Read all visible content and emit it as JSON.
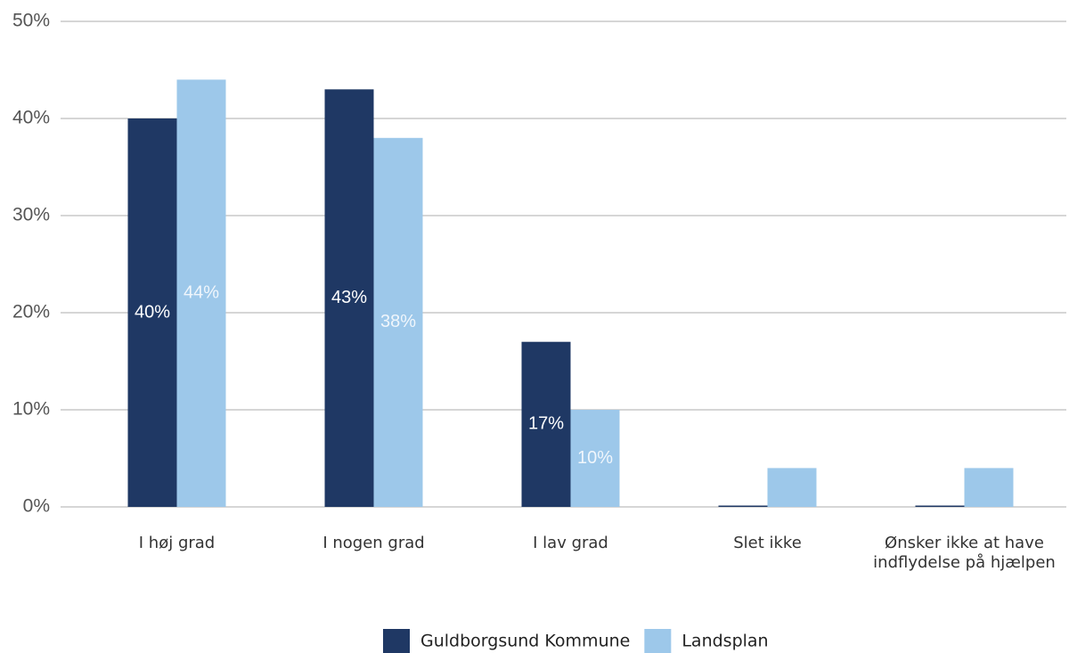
{
  "chart_data": {
    "type": "bar",
    "categories": [
      "I høj grad",
      "I nogen grad",
      "I lav grad",
      "Slet ikke",
      "Ønsker ikke at have indflydelse på hjælpen"
    ],
    "series": [
      {
        "name": "Guldborgsund Kommune",
        "color": "#1f3864",
        "values": [
          40,
          43,
          17,
          0,
          0
        ],
        "value_labels": [
          "40%",
          "43%",
          "17%",
          null,
          null
        ]
      },
      {
        "name": "Landsplan",
        "color": "#9dc8ea",
        "values": [
          44,
          38,
          10,
          4,
          4
        ],
        "value_labels": [
          "44%",
          "38%",
          "10%",
          null,
          null
        ]
      }
    ],
    "ylim": [
      0,
      50
    ],
    "yticks": [
      {
        "value": 0,
        "label": "0%"
      },
      {
        "value": 10,
        "label": "10%"
      },
      {
        "value": 20,
        "label": "20%"
      },
      {
        "value": 30,
        "label": "30%"
      },
      {
        "value": 40,
        "label": "40%"
      },
      {
        "value": 50,
        "label": "50%"
      }
    ],
    "grid": true,
    "legend": "bottom"
  }
}
